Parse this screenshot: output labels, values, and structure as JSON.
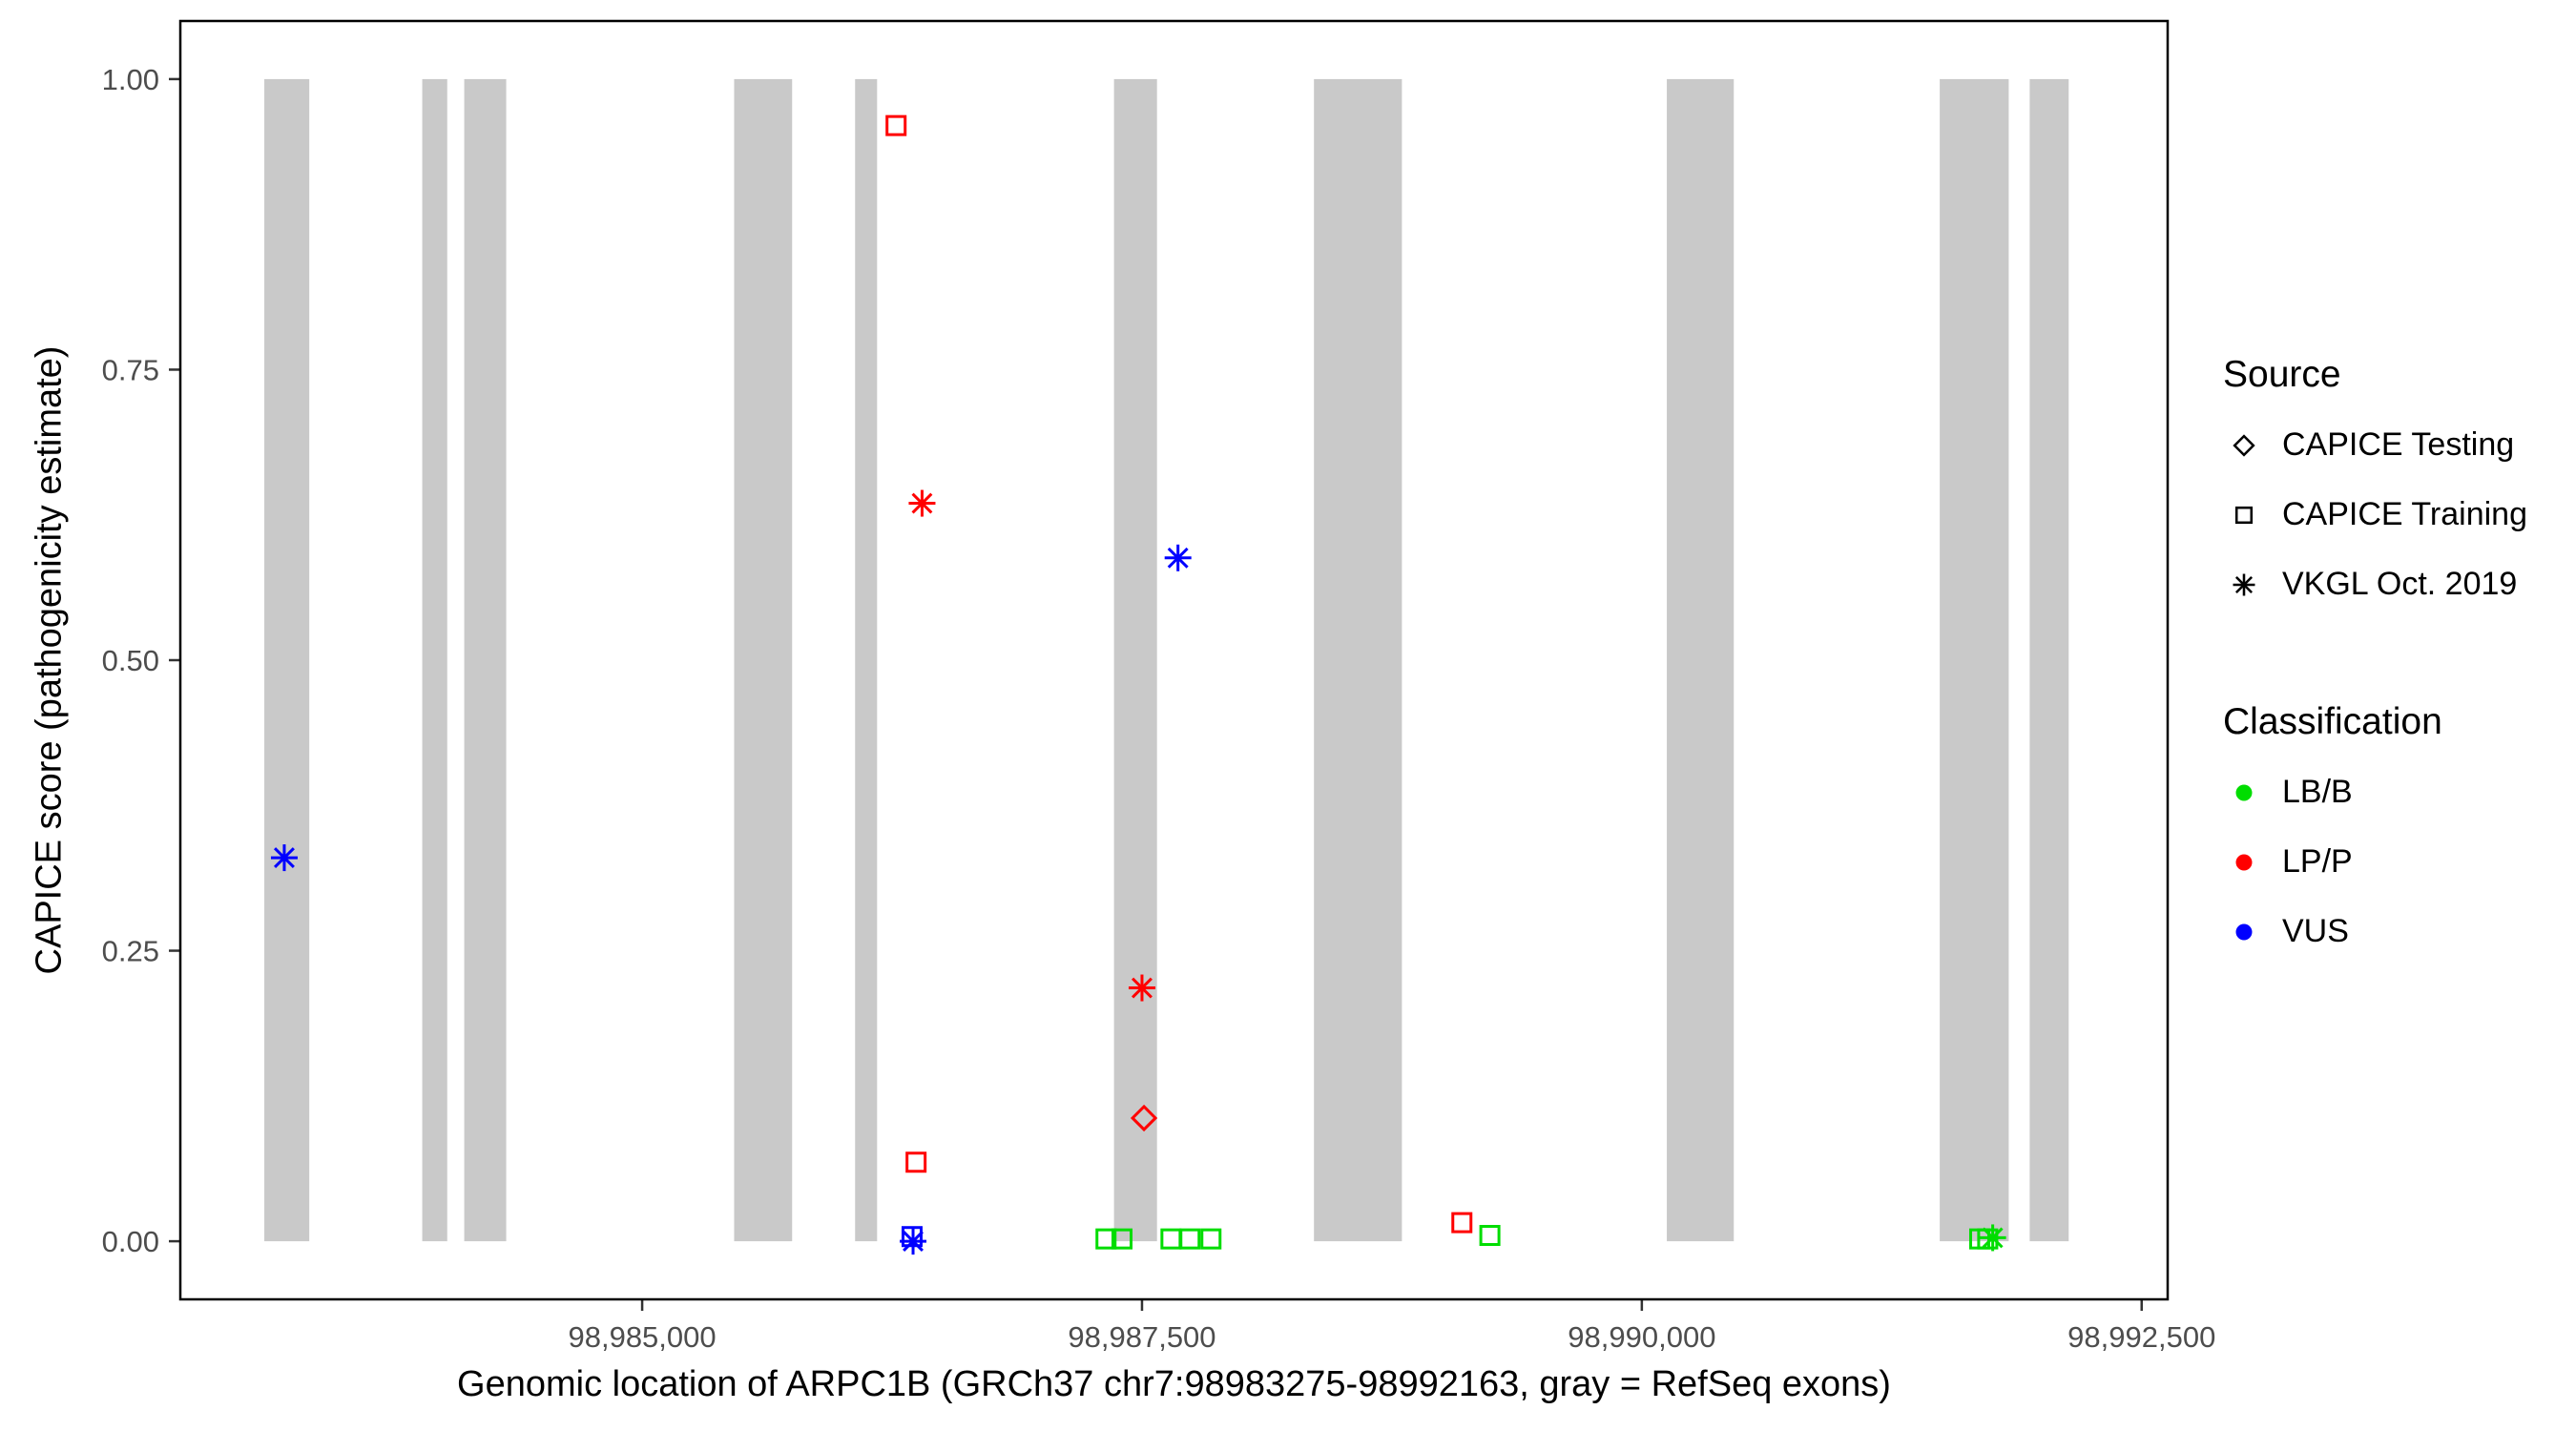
{
  "chart_data": {
    "type": "scatter",
    "title": "",
    "xlabel": "Genomic location of ARPC1B (GRCh37 chr7:98983275-98992163, gray = RefSeq exons)",
    "ylabel": "CAPICE score (pathogenicity estimate)",
    "xlim": [
      98982690,
      98992630
    ],
    "ylim": [
      -0.05,
      1.05
    ],
    "x_ticks": [
      98985000,
      98987500,
      98990000,
      98992500
    ],
    "x_tick_labels": [
      "98,985,000",
      "98,987,500",
      "98,990,000",
      "98,992,500"
    ],
    "y_ticks": [
      0,
      0.25,
      0.5,
      0.75,
      1
    ],
    "y_tick_labels": [
      "0.00",
      "0.25",
      "0.50",
      "0.75",
      "1.00"
    ],
    "grid": false,
    "legend_position": "right",
    "exon_color": "#C9C9C9",
    "exons": [
      {
        "start": 98983110,
        "end": 98983335
      },
      {
        "start": 98983900,
        "end": 98984025
      },
      {
        "start": 98984110,
        "end": 98984320
      },
      {
        "start": 98985460,
        "end": 98985750
      },
      {
        "start": 98986065,
        "end": 98986175
      },
      {
        "start": 98987360,
        "end": 98987575
      },
      {
        "start": 98988360,
        "end": 98988800
      },
      {
        "start": 98990125,
        "end": 98990460
      },
      {
        "start": 98991490,
        "end": 98991835
      },
      {
        "start": 98991940,
        "end": 98992135
      }
    ],
    "source_shapes": {
      "CAPICE Testing": "diamond",
      "CAPICE Training": "square",
      "VKGL Oct. 2019": "asterisk"
    },
    "classification_colors": {
      "LB/B": "#00DD00",
      "LP/P": "#FF0000",
      "VUS": "#0000FF"
    },
    "points": [
      {
        "pos": 98983210,
        "score": 0.33,
        "source": "VKGL Oct. 2019",
        "classification": "VUS"
      },
      {
        "pos": 98986270,
        "score": 0.96,
        "source": "CAPICE Training",
        "classification": "LP/P"
      },
      {
        "pos": 98986400,
        "score": 0.635,
        "source": "VKGL Oct. 2019",
        "classification": "LP/P"
      },
      {
        "pos": 98986370,
        "score": 0.068,
        "source": "CAPICE Training",
        "classification": "LP/P"
      },
      {
        "pos": 98986350,
        "score": 0.004,
        "source": "CAPICE Training",
        "classification": "VUS"
      },
      {
        "pos": 98986355,
        "score": 0.0,
        "source": "VKGL Oct. 2019",
        "classification": "VUS"
      },
      {
        "pos": 98987680,
        "score": 0.588,
        "source": "VKGL Oct. 2019",
        "classification": "VUS"
      },
      {
        "pos": 98987500,
        "score": 0.218,
        "source": "VKGL Oct. 2019",
        "classification": "LP/P"
      },
      {
        "pos": 98987510,
        "score": 0.106,
        "source": "CAPICE Testing",
        "classification": "LP/P"
      },
      {
        "pos": 98987320,
        "score": 0.002,
        "source": "CAPICE Training",
        "classification": "LB/B"
      },
      {
        "pos": 98987400,
        "score": 0.002,
        "source": "CAPICE Training",
        "classification": "LB/B"
      },
      {
        "pos": 98987645,
        "score": 0.002,
        "source": "CAPICE Training",
        "classification": "LB/B"
      },
      {
        "pos": 98987740,
        "score": 0.002,
        "source": "CAPICE Training",
        "classification": "LB/B"
      },
      {
        "pos": 98987845,
        "score": 0.002,
        "source": "CAPICE Training",
        "classification": "LB/B"
      },
      {
        "pos": 98989100,
        "score": 0.016,
        "source": "CAPICE Training",
        "classification": "LP/P"
      },
      {
        "pos": 98989240,
        "score": 0.005,
        "source": "CAPICE Training",
        "classification": "LB/B"
      },
      {
        "pos": 98991690,
        "score": 0.002,
        "source": "CAPICE Training",
        "classification": "LB/B"
      },
      {
        "pos": 98991730,
        "score": 0.002,
        "source": "CAPICE Training",
        "classification": "LB/B"
      },
      {
        "pos": 98991755,
        "score": 0.003,
        "source": "VKGL Oct. 2019",
        "classification": "LB/B"
      }
    ]
  },
  "legend": {
    "source": {
      "title": "Source",
      "items": [
        {
          "label": "CAPICE Testing",
          "shape": "diamond",
          "color": "#000000"
        },
        {
          "label": "CAPICE Training",
          "shape": "square",
          "color": "#000000"
        },
        {
          "label": "VKGL Oct. 2019",
          "shape": "asterisk",
          "color": "#000000"
        }
      ]
    },
    "classification": {
      "title": "Classification",
      "items": [
        {
          "label": "LB/B",
          "shape": "circle",
          "color": "#00DD00"
        },
        {
          "label": "LP/P",
          "shape": "circle",
          "color": "#FF0000"
        },
        {
          "label": "VUS",
          "shape": "circle",
          "color": "#0000FF"
        }
      ]
    }
  }
}
